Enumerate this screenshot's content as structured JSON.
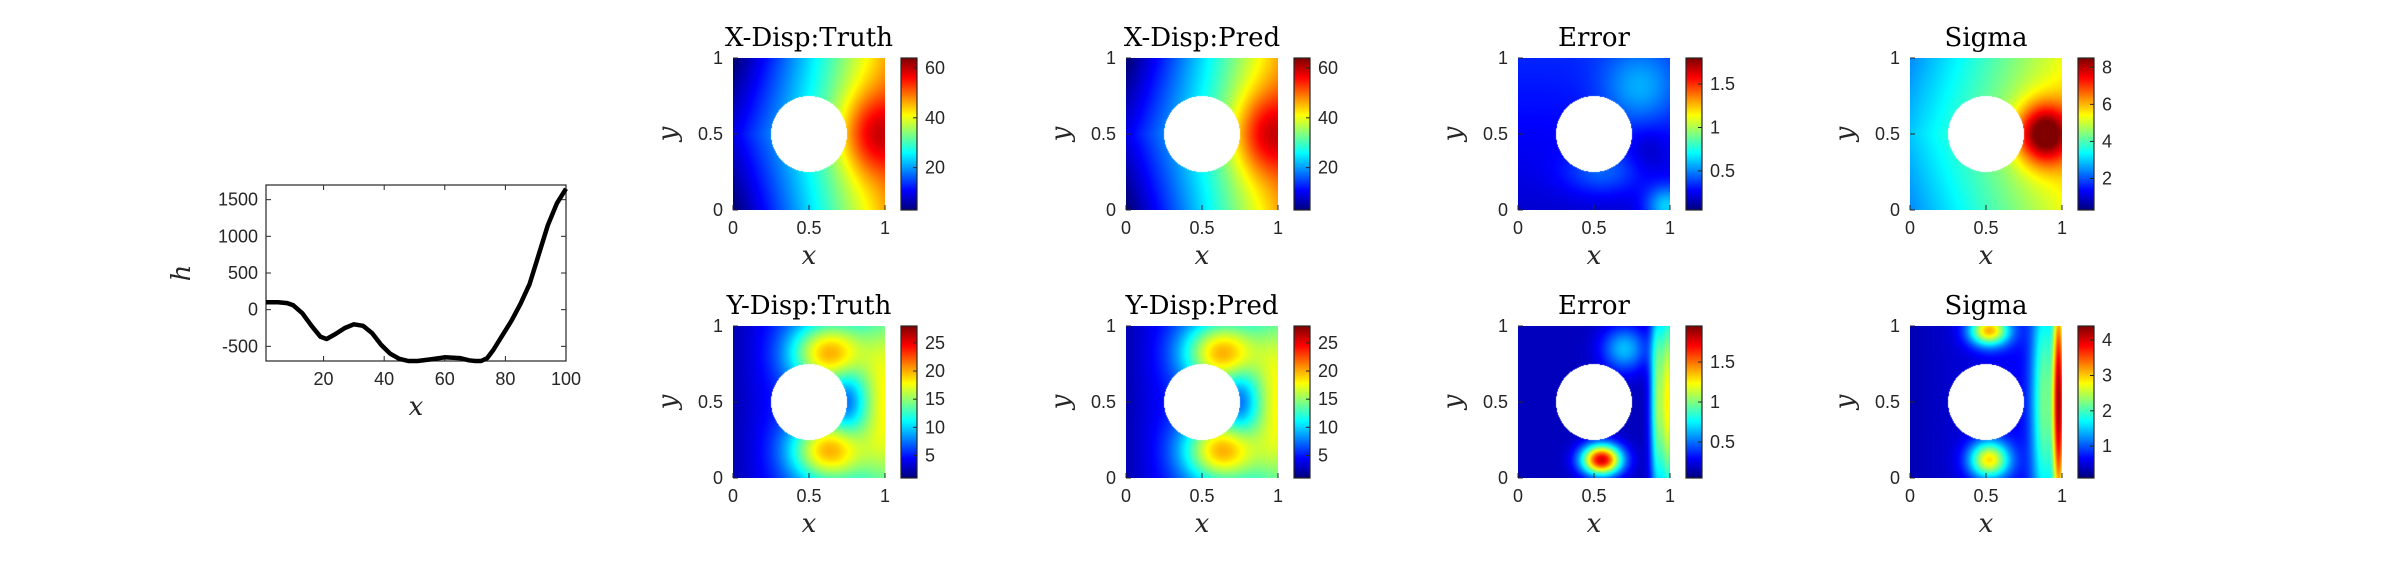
{
  "chart_data": [
    {
      "type": "line",
      "id": "h-profile",
      "title": "",
      "xlabel": "x",
      "ylabel": "h",
      "xlim": [
        1,
        100
      ],
      "ylim": [
        -700,
        1700
      ],
      "xticks": [
        20,
        40,
        60,
        80,
        100
      ],
      "yticks": [
        -500,
        0,
        500,
        1000,
        1500
      ],
      "xtick_labels": [
        "20",
        "40",
        "60",
        "80",
        "100"
      ],
      "ytick_labels": [
        "-500",
        "0",
        "500",
        "1000",
        "1500"
      ],
      "series": [
        {
          "color": "#000000",
          "x": [
            1,
            5,
            8,
            10,
            13,
            16,
            19,
            21,
            24,
            27,
            30,
            33,
            36,
            39,
            42,
            45,
            48,
            51,
            55,
            60,
            65,
            68,
            70,
            72,
            74,
            76,
            79,
            82,
            85,
            88,
            91,
            94,
            97,
            100
          ],
          "values": [
            100,
            100,
            90,
            60,
            -50,
            -220,
            -370,
            -400,
            -330,
            -250,
            -200,
            -220,
            -320,
            -480,
            -600,
            -670,
            -700,
            -700,
            -680,
            -650,
            -660,
            -690,
            -700,
            -700,
            -660,
            -550,
            -350,
            -150,
            80,
            350,
            750,
            1150,
            1450,
            1650
          ]
        }
      ]
    },
    {
      "type": "heatmap",
      "id": "xdisp-truth",
      "title": "X-Disp:Truth",
      "xlabel": "x",
      "ylabel": "y",
      "xlim": [
        0,
        1
      ],
      "ylim": [
        0,
        1
      ],
      "xtick_labels": [
        "0",
        "0.5",
        "1"
      ],
      "ytick_labels": [
        "0",
        "0.5",
        "1"
      ],
      "field": "x-displacement",
      "colormap": "jet",
      "clim": [
        3,
        64
      ],
      "colorbar_ticks": [
        20,
        40,
        60
      ],
      "colorbar_tick_labels": [
        "20",
        "40",
        "60"
      ],
      "hole": {
        "center": [
          0.5,
          0.5
        ],
        "radius": 0.25
      }
    },
    {
      "type": "heatmap",
      "id": "xdisp-pred",
      "title": "X-Disp:Pred",
      "xlabel": "x",
      "ylabel": "y",
      "xlim": [
        0,
        1
      ],
      "ylim": [
        0,
        1
      ],
      "xtick_labels": [
        "0",
        "0.5",
        "1"
      ],
      "ytick_labels": [
        "0",
        "0.5",
        "1"
      ],
      "field": "x-displacement",
      "colormap": "jet",
      "clim": [
        3,
        64
      ],
      "colorbar_ticks": [
        20,
        40,
        60
      ],
      "colorbar_tick_labels": [
        "20",
        "40",
        "60"
      ],
      "hole": {
        "center": [
          0.5,
          0.5
        ],
        "radius": 0.25
      }
    },
    {
      "type": "heatmap",
      "id": "xdisp-error",
      "title": "Error",
      "xlabel": "x",
      "ylabel": "y",
      "xlim": [
        0,
        1
      ],
      "ylim": [
        0,
        1
      ],
      "xtick_labels": [
        "0",
        "0.5",
        "1"
      ],
      "ytick_labels": [
        "0",
        "0.5",
        "1"
      ],
      "field": "x-error",
      "colormap": "jet",
      "clim": [
        0.05,
        1.8
      ],
      "colorbar_ticks": [
        0.5,
        1,
        1.5
      ],
      "colorbar_tick_labels": [
        "0.5",
        "1",
        "1.5"
      ],
      "hole": {
        "center": [
          0.5,
          0.5
        ],
        "radius": 0.25
      }
    },
    {
      "type": "heatmap",
      "id": "xdisp-sigma",
      "title": "Sigma",
      "xlabel": "x",
      "ylabel": "y",
      "xlim": [
        0,
        1
      ],
      "ylim": [
        0,
        1
      ],
      "xtick_labels": [
        "0",
        "0.5",
        "1"
      ],
      "ytick_labels": [
        "0",
        "0.5",
        "1"
      ],
      "field": "x-sigma",
      "colormap": "jet",
      "clim": [
        0.3,
        8.5
      ],
      "colorbar_ticks": [
        2,
        4,
        6,
        8
      ],
      "colorbar_tick_labels": [
        "2",
        "4",
        "6",
        "8"
      ],
      "hole": {
        "center": [
          0.5,
          0.5
        ],
        "radius": 0.25
      }
    },
    {
      "type": "heatmap",
      "id": "ydisp-truth",
      "title": "Y-Disp:Truth",
      "xlabel": "x",
      "ylabel": "y",
      "xlim": [
        0,
        1
      ],
      "ylim": [
        0,
        1
      ],
      "xtick_labels": [
        "0",
        "0.5",
        "1"
      ],
      "ytick_labels": [
        "0",
        "0.5",
        "1"
      ],
      "field": "y-displacement",
      "colormap": "jet",
      "clim": [
        1,
        28
      ],
      "colorbar_ticks": [
        5,
        10,
        15,
        20,
        25
      ],
      "colorbar_tick_labels": [
        "5",
        "10",
        "15",
        "20",
        "25"
      ],
      "hole": {
        "center": [
          0.5,
          0.5
        ],
        "radius": 0.25
      }
    },
    {
      "type": "heatmap",
      "id": "ydisp-pred",
      "title": "Y-Disp:Pred",
      "xlabel": "x",
      "ylabel": "y",
      "xlim": [
        0,
        1
      ],
      "ylim": [
        0,
        1
      ],
      "xtick_labels": [
        "0",
        "0.5",
        "1"
      ],
      "ytick_labels": [
        "0",
        "0.5",
        "1"
      ],
      "field": "y-displacement",
      "colormap": "jet",
      "clim": [
        1,
        28
      ],
      "colorbar_ticks": [
        5,
        10,
        15,
        20,
        25
      ],
      "colorbar_tick_labels": [
        "5",
        "10",
        "15",
        "20",
        "25"
      ],
      "hole": {
        "center": [
          0.5,
          0.5
        ],
        "radius": 0.25
      }
    },
    {
      "type": "heatmap",
      "id": "ydisp-error",
      "title": "Error",
      "xlabel": "x",
      "ylabel": "y",
      "xlim": [
        0,
        1
      ],
      "ylim": [
        0,
        1
      ],
      "xtick_labels": [
        "0",
        "0.5",
        "1"
      ],
      "ytick_labels": [
        "0",
        "0.5",
        "1"
      ],
      "field": "y-error",
      "colormap": "jet",
      "clim": [
        0.05,
        1.95
      ],
      "colorbar_ticks": [
        0.5,
        1,
        1.5
      ],
      "colorbar_tick_labels": [
        "0.5",
        "1",
        "1.5"
      ],
      "hole": {
        "center": [
          0.5,
          0.5
        ],
        "radius": 0.25
      }
    },
    {
      "type": "heatmap",
      "id": "ydisp-sigma",
      "title": "Sigma",
      "xlabel": "x",
      "ylabel": "y",
      "xlim": [
        0,
        1
      ],
      "ylim": [
        0,
        1
      ],
      "xtick_labels": [
        "0",
        "0.5",
        "1"
      ],
      "ytick_labels": [
        "0",
        "0.5",
        "1"
      ],
      "field": "y-sigma",
      "colormap": "jet",
      "clim": [
        0.1,
        4.4
      ],
      "colorbar_ticks": [
        1,
        2,
        3,
        4
      ],
      "colorbar_tick_labels": [
        "1",
        "2",
        "3",
        "4"
      ],
      "hole": {
        "center": [
          0.5,
          0.5
        ],
        "radius": 0.25
      }
    }
  ]
}
